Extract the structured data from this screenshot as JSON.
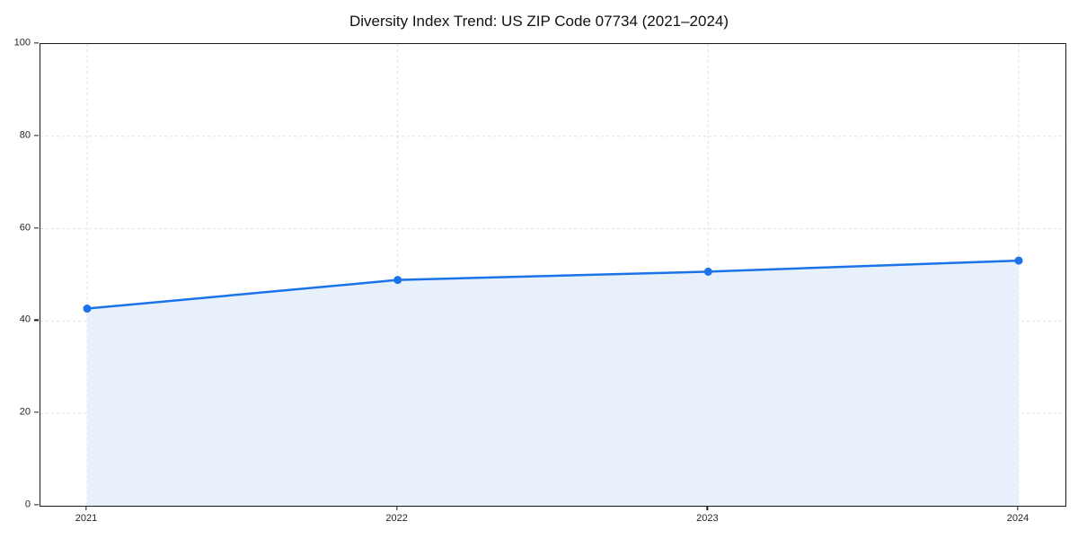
{
  "title": "Diversity Index Trend: US ZIP Code 07734 (2021–2024)",
  "chart_data": {
    "type": "area",
    "title": "Diversity Index Trend: US ZIP Code 07734 (2021–2024)",
    "x": [
      "2021",
      "2022",
      "2023",
      "2024"
    ],
    "series": [
      {
        "name": "Diversity Index",
        "values": [
          42.7,
          48.9,
          50.7,
          53.1
        ]
      }
    ],
    "xlabel": "",
    "ylabel": "",
    "ylim": [
      0,
      100
    ],
    "yticks": [
      0,
      20,
      40,
      60,
      80,
      100
    ],
    "grid": true,
    "grid_style": "dashed",
    "legend": "none",
    "colors": {
      "line": "#1a73e8",
      "marker": "#1a73e8",
      "fill": "#e8f0fc",
      "gridline": "#e0e0e0",
      "spine": "#1a1a1a",
      "tick_text": "#262626",
      "title_text": "#111111"
    }
  }
}
